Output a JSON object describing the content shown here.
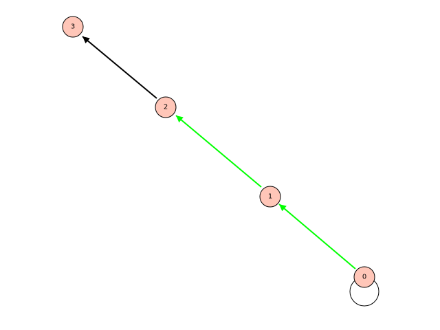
{
  "graph": {
    "node_fill": "#ffc6b8",
    "nodes": [
      {
        "id": "0",
        "label": "0"
      },
      {
        "id": "1",
        "label": "1"
      },
      {
        "id": "2",
        "label": "2"
      },
      {
        "id": "3",
        "label": "3"
      }
    ],
    "edges": [
      {
        "from": "0",
        "to": "0",
        "color": "#000000",
        "self_loop": true
      },
      {
        "from": "0",
        "to": "1",
        "color": "#00ff00"
      },
      {
        "from": "1",
        "to": "2",
        "color": "#00ff00"
      },
      {
        "from": "2",
        "to": "3",
        "color": "#000000"
      }
    ]
  }
}
